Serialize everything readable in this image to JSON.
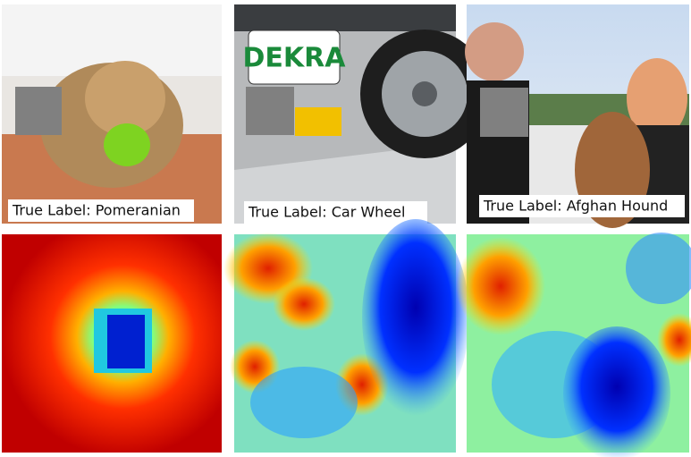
{
  "panels": [
    {
      "label": "True Label: Pomeranian"
    },
    {
      "label": "True Label: Car Wheel"
    },
    {
      "label": "True Label: Afghan Hound"
    }
  ]
}
